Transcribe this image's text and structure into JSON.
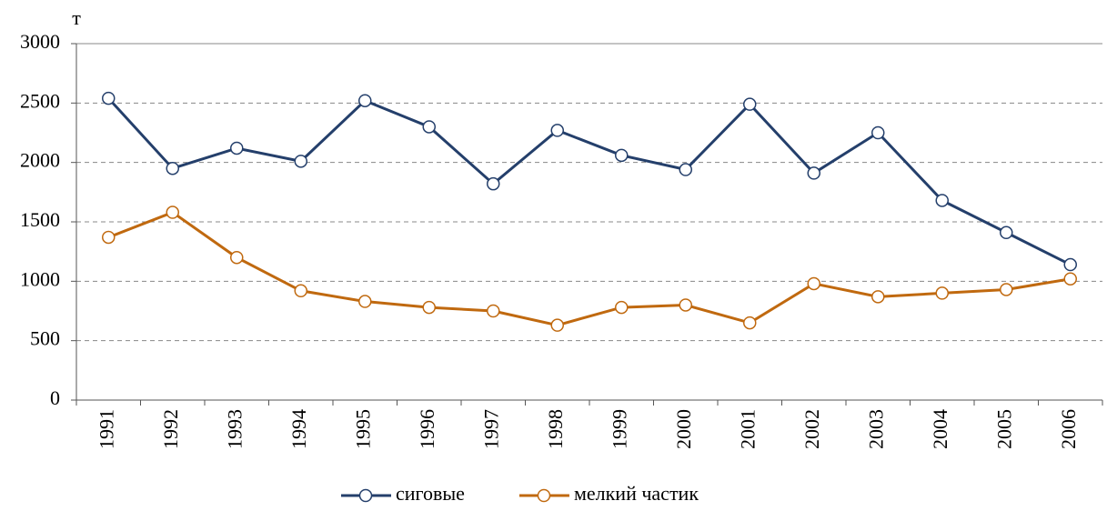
{
  "chart_data": {
    "type": "line",
    "y_unit_label": "т",
    "categories": [
      "1991",
      "1992",
      "1993",
      "1994",
      "1995",
      "1996",
      "1997",
      "1998",
      "1999",
      "2000",
      "2001",
      "2002",
      "2003",
      "2004",
      "2005",
      "2006"
    ],
    "series": [
      {
        "name": "сиговые",
        "color": "#243f6b",
        "values": [
          2540,
          1950,
          2120,
          2010,
          2520,
          2300,
          1820,
          2270,
          2060,
          1940,
          2490,
          1910,
          2250,
          1680,
          1410,
          1140
        ]
      },
      {
        "name": "мелкий частик",
        "color": "#c0690f",
        "values": [
          1370,
          1580,
          1200,
          920,
          830,
          780,
          750,
          630,
          780,
          800,
          650,
          980,
          870,
          900,
          930,
          1020
        ]
      }
    ],
    "ylim": [
      0,
      3000
    ],
    "yticks": [
      0,
      500,
      1000,
      1500,
      2000,
      2500,
      3000
    ],
    "grid": true,
    "legend": "bottom"
  }
}
